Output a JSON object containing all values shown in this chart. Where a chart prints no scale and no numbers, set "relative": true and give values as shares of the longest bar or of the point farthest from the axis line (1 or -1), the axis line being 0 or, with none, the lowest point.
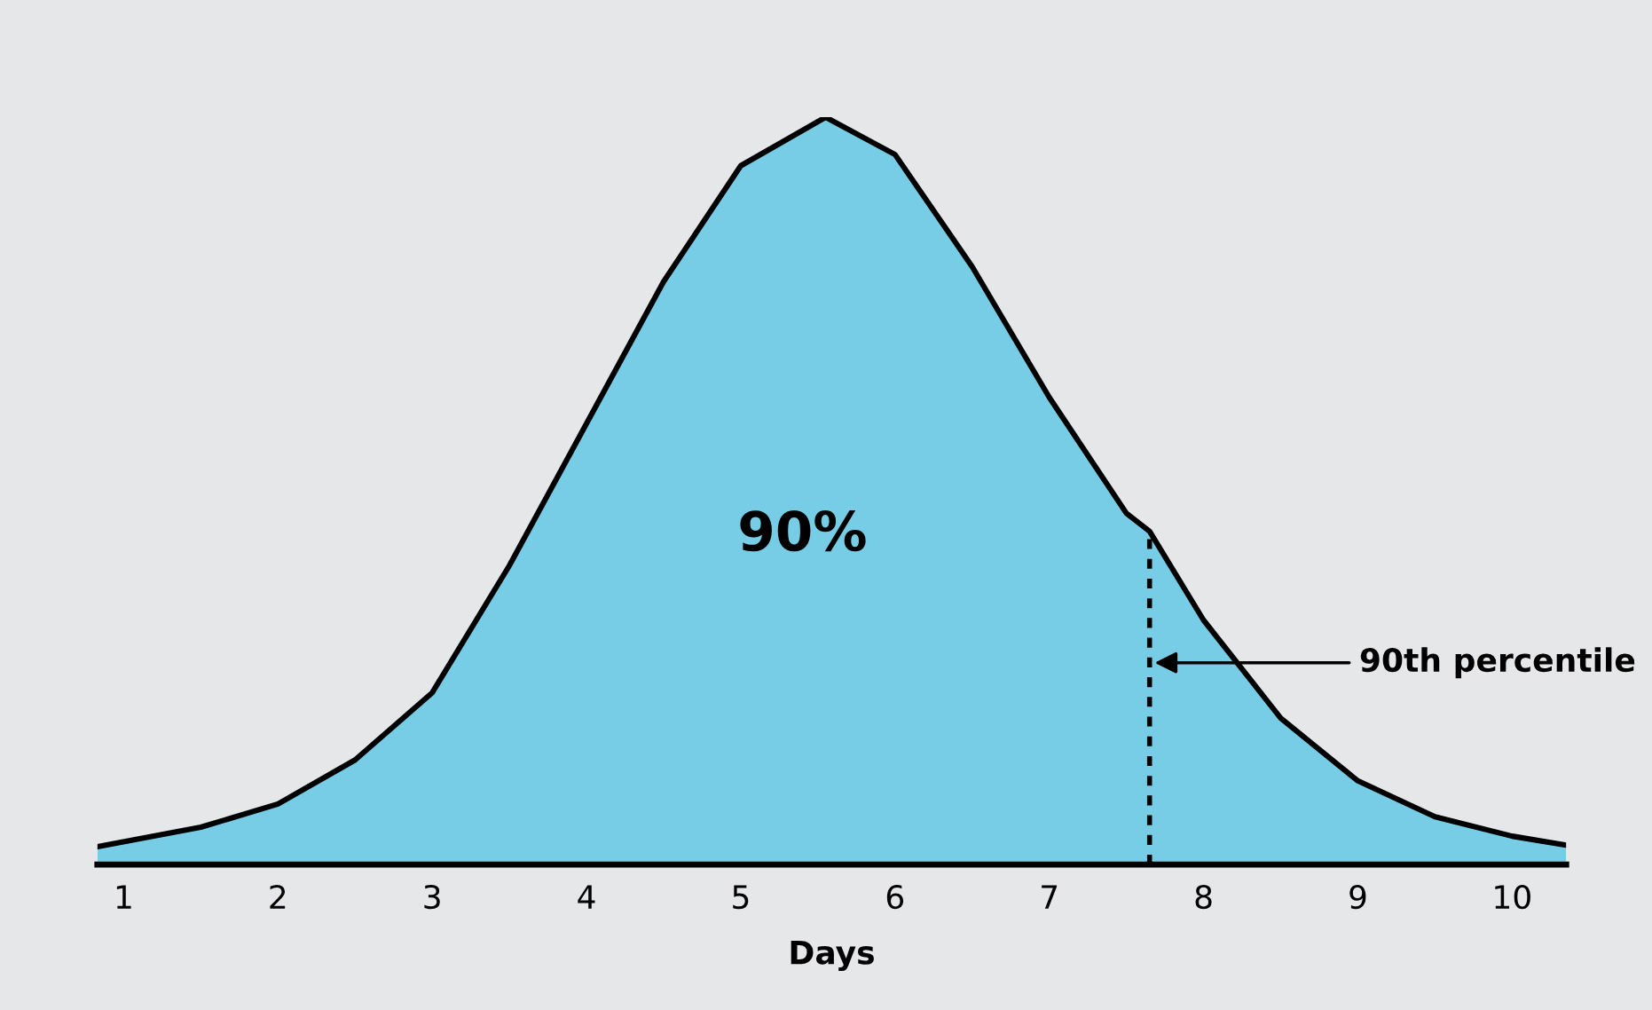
{
  "chart_data": {
    "type": "area",
    "relative": true,
    "xlabel": "Days",
    "x": [
      0.83,
      1.5,
      2,
      2.5,
      3,
      3.5,
      4,
      4.5,
      5,
      5.55,
      6,
      6.5,
      7,
      7.5,
      7.65,
      8,
      8.5,
      9,
      9.5,
      10,
      10.35
    ],
    "series": [
      {
        "color": "#77cde6",
        "values": [
          0.024,
          0.05,
          0.081,
          0.14,
          0.23,
          0.4,
          0.59,
          0.78,
          0.935,
          1,
          0.95,
          0.8,
          0.625,
          0.47,
          0.446,
          0.327,
          0.196,
          0.112,
          0.064,
          0.038,
          0.026
        ]
      }
    ],
    "xlim": [
      0.83,
      10.35
    ],
    "xticks": [
      1,
      2,
      3,
      4,
      5,
      6,
      7,
      8,
      9,
      10
    ],
    "ref_lines": [
      {
        "axis": "x",
        "value": 7.65,
        "color": "#000000",
        "line_style": "dotted"
      }
    ],
    "annotations": [
      "90%",
      {
        "text": "90th percentile",
        "x": 7.65,
        "y": 0.27
      }
    ],
    "grid": false,
    "legend": false
  }
}
